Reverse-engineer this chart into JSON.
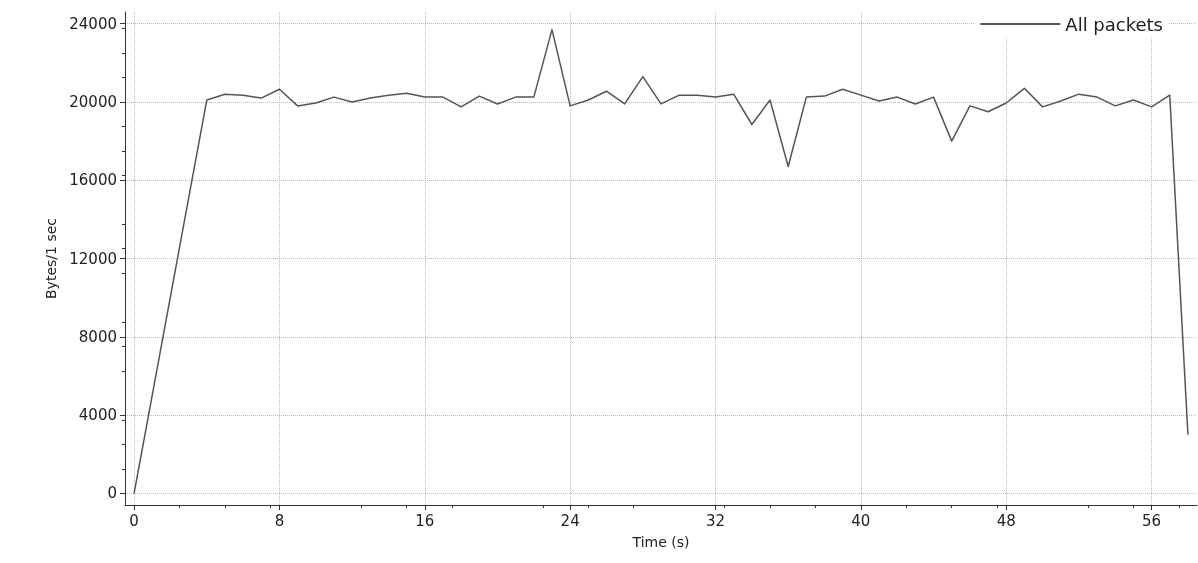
{
  "chart_data": {
    "type": "line",
    "xlabel": "Time (s)",
    "ylabel": "Bytes/1 sec",
    "x": [
      0,
      4,
      5,
      6,
      7,
      8,
      9,
      10,
      11,
      12,
      13,
      14,
      15,
      16,
      17,
      18,
      19,
      20,
      21,
      22,
      23,
      24,
      25,
      26,
      27,
      28,
      29,
      30,
      31,
      32,
      33,
      34,
      35,
      36,
      37,
      38,
      39,
      40,
      41,
      42,
      43,
      44,
      45,
      46,
      47,
      48,
      49,
      50,
      51,
      52,
      53,
      54,
      55,
      56,
      57,
      58
    ],
    "series": [
      {
        "name": "All packets",
        "color": "#555555",
        "values": [
          0,
          20100,
          20400,
          20350,
          20200,
          20650,
          19800,
          19950,
          20250,
          20000,
          20200,
          20350,
          20450,
          20250,
          20250,
          19750,
          20300,
          19900,
          20250,
          20250,
          23700,
          19800,
          20100,
          20550,
          19900,
          21300,
          19900,
          20350,
          20350,
          20250,
          20400,
          18850,
          20100,
          16700,
          20250,
          20300,
          20650,
          20350,
          20050,
          20250,
          19900,
          20250,
          18000,
          19800,
          19500,
          19950,
          20700,
          19750,
          20050,
          20400,
          20250,
          19800,
          20100,
          19750,
          20350,
          3000
        ]
      }
    ],
    "xlim": [
      -0.5,
      58.5
    ],
    "xticks": [
      0,
      8,
      16,
      24,
      32,
      40,
      48,
      56
    ],
    "ylim": [
      -600,
      24600
    ],
    "yticks": [
      0,
      4000,
      8000,
      12000,
      16000,
      20000,
      24000
    ],
    "grid": true,
    "legend": "top right",
    "marker": "none",
    "line_style": "solid"
  }
}
